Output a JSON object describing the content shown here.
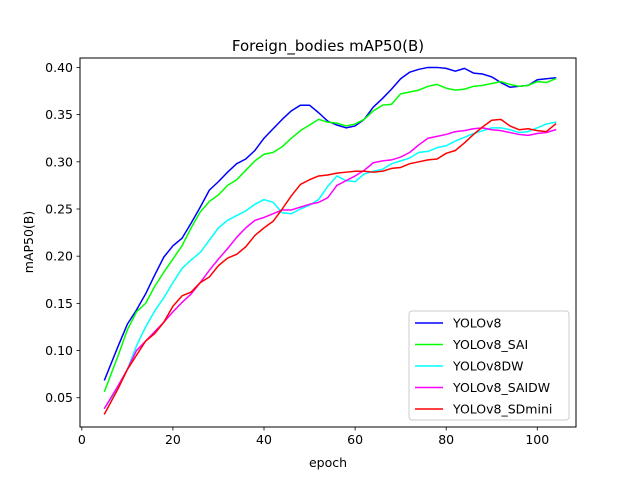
{
  "chart_data": {
    "type": "line",
    "title": "Foreign_bodies mAP50(B)",
    "xlabel": "epoch",
    "ylabel": "mAP50(B)",
    "xlim": [
      -0.4,
      108.5
    ],
    "ylim": [
      0.019,
      0.41
    ],
    "xticks": [
      0,
      20,
      40,
      60,
      80,
      100
    ],
    "xtick_labels": [
      "0",
      "20",
      "40",
      "60",
      "80",
      "100"
    ],
    "yticks": [
      0.05,
      0.1,
      0.15,
      0.2,
      0.25,
      0.3,
      0.35,
      0.4
    ],
    "ytick_labels": [
      "0.05",
      "0.10",
      "0.15",
      "0.20",
      "0.25",
      "0.30",
      "0.35",
      "0.40"
    ],
    "grid": false,
    "legend_position": "bottom-right",
    "series": [
      {
        "name": "YOLOv8",
        "color": "#0000ff",
        "x": [
          5,
          8,
          10,
          12,
          14,
          16,
          18,
          20,
          22,
          24,
          26,
          28,
          30,
          32,
          34,
          36,
          38,
          40,
          42,
          44,
          46,
          48,
          50,
          52,
          54,
          56,
          58,
          60,
          62,
          64,
          66,
          68,
          70,
          72,
          74,
          76,
          78,
          80,
          82,
          84,
          86,
          88,
          90,
          92,
          94,
          96,
          98,
          100,
          102,
          104
        ],
        "y": [
          0.069,
          0.105,
          0.128,
          0.143,
          0.16,
          0.18,
          0.199,
          0.211,
          0.219,
          0.235,
          0.252,
          0.27,
          0.279,
          0.289,
          0.298,
          0.303,
          0.312,
          0.325,
          0.335,
          0.345,
          0.354,
          0.36,
          0.36,
          0.352,
          0.343,
          0.339,
          0.336,
          0.338,
          0.345,
          0.358,
          0.367,
          0.377,
          0.388,
          0.395,
          0.398,
          0.4,
          0.4,
          0.399,
          0.396,
          0.399,
          0.394,
          0.393,
          0.39,
          0.384,
          0.379,
          0.38,
          0.381,
          0.387,
          0.388,
          0.389
        ]
      },
      {
        "name": "YOLOv8_SAI",
        "color": "#00ff00",
        "x": [
          5,
          8,
          10,
          12,
          14,
          16,
          18,
          20,
          22,
          24,
          26,
          28,
          30,
          32,
          34,
          36,
          38,
          40,
          42,
          44,
          46,
          48,
          50,
          52,
          54,
          56,
          58,
          60,
          62,
          64,
          66,
          68,
          70,
          72,
          74,
          76,
          78,
          80,
          82,
          84,
          86,
          88,
          90,
          92,
          94,
          96,
          98,
          100,
          102,
          104
        ],
        "y": [
          0.057,
          0.095,
          0.122,
          0.141,
          0.15,
          0.168,
          0.183,
          0.197,
          0.211,
          0.23,
          0.247,
          0.258,
          0.265,
          0.275,
          0.281,
          0.291,
          0.301,
          0.308,
          0.31,
          0.316,
          0.325,
          0.333,
          0.339,
          0.345,
          0.342,
          0.341,
          0.338,
          0.34,
          0.345,
          0.354,
          0.36,
          0.361,
          0.372,
          0.374,
          0.376,
          0.38,
          0.382,
          0.378,
          0.376,
          0.377,
          0.38,
          0.381,
          0.383,
          0.385,
          0.382,
          0.38,
          0.381,
          0.385,
          0.384,
          0.388
        ]
      },
      {
        "name": "YOLOv8DW",
        "color": "#00ffff",
        "x": [
          5,
          8,
          10,
          12,
          14,
          16,
          18,
          20,
          22,
          24,
          26,
          28,
          30,
          32,
          34,
          36,
          38,
          40,
          42,
          44,
          46,
          48,
          50,
          52,
          54,
          56,
          58,
          60,
          62,
          64,
          66,
          68,
          70,
          72,
          74,
          76,
          78,
          80,
          82,
          84,
          86,
          88,
          90,
          92,
          94,
          96,
          98,
          100,
          102,
          104
        ],
        "y": [
          0.039,
          0.061,
          0.08,
          0.105,
          0.125,
          0.142,
          0.156,
          0.172,
          0.187,
          0.196,
          0.204,
          0.217,
          0.23,
          0.238,
          0.243,
          0.248,
          0.255,
          0.26,
          0.257,
          0.246,
          0.245,
          0.25,
          0.254,
          0.26,
          0.274,
          0.285,
          0.28,
          0.279,
          0.287,
          0.29,
          0.292,
          0.298,
          0.301,
          0.304,
          0.31,
          0.311,
          0.315,
          0.317,
          0.322,
          0.326,
          0.33,
          0.333,
          0.336,
          0.336,
          0.334,
          0.331,
          0.332,
          0.336,
          0.34,
          0.342
        ]
      },
      {
        "name": "YOLOv8_SAIDW",
        "color": "#ff00ff",
        "x": [
          5,
          8,
          10,
          12,
          14,
          16,
          18,
          20,
          22,
          24,
          26,
          28,
          30,
          32,
          34,
          36,
          38,
          40,
          42,
          44,
          46,
          48,
          50,
          52,
          54,
          56,
          58,
          60,
          62,
          64,
          66,
          68,
          70,
          72,
          74,
          76,
          78,
          80,
          82,
          84,
          86,
          88,
          90,
          92,
          94,
          96,
          98,
          100,
          102,
          104
        ],
        "y": [
          0.039,
          0.063,
          0.08,
          0.1,
          0.11,
          0.12,
          0.13,
          0.141,
          0.151,
          0.16,
          0.172,
          0.185,
          0.197,
          0.208,
          0.22,
          0.23,
          0.238,
          0.241,
          0.245,
          0.249,
          0.249,
          0.252,
          0.255,
          0.257,
          0.262,
          0.275,
          0.28,
          0.285,
          0.291,
          0.299,
          0.301,
          0.302,
          0.305,
          0.31,
          0.318,
          0.325,
          0.327,
          0.329,
          0.332,
          0.333,
          0.335,
          0.336,
          0.334,
          0.333,
          0.331,
          0.329,
          0.328,
          0.33,
          0.331,
          0.334
        ]
      },
      {
        "name": "YOLOv8_SDmini",
        "color": "#ff0000",
        "x": [
          5,
          8,
          10,
          12,
          14,
          16,
          18,
          20,
          22,
          24,
          26,
          28,
          30,
          32,
          34,
          36,
          38,
          40,
          42,
          44,
          46,
          48,
          50,
          52,
          54,
          56,
          58,
          60,
          62,
          64,
          66,
          68,
          70,
          72,
          74,
          76,
          78,
          80,
          82,
          84,
          86,
          88,
          90,
          92,
          94,
          96,
          98,
          100,
          102,
          104
        ],
        "y": [
          0.033,
          0.06,
          0.08,
          0.095,
          0.11,
          0.118,
          0.13,
          0.147,
          0.158,
          0.162,
          0.172,
          0.178,
          0.19,
          0.198,
          0.202,
          0.21,
          0.222,
          0.23,
          0.237,
          0.25,
          0.264,
          0.276,
          0.281,
          0.285,
          0.286,
          0.288,
          0.289,
          0.29,
          0.29,
          0.289,
          0.29,
          0.293,
          0.294,
          0.298,
          0.3,
          0.302,
          0.303,
          0.309,
          0.312,
          0.32,
          0.329,
          0.337,
          0.344,
          0.345,
          0.338,
          0.334,
          0.335,
          0.333,
          0.332,
          0.34
        ]
      }
    ]
  }
}
